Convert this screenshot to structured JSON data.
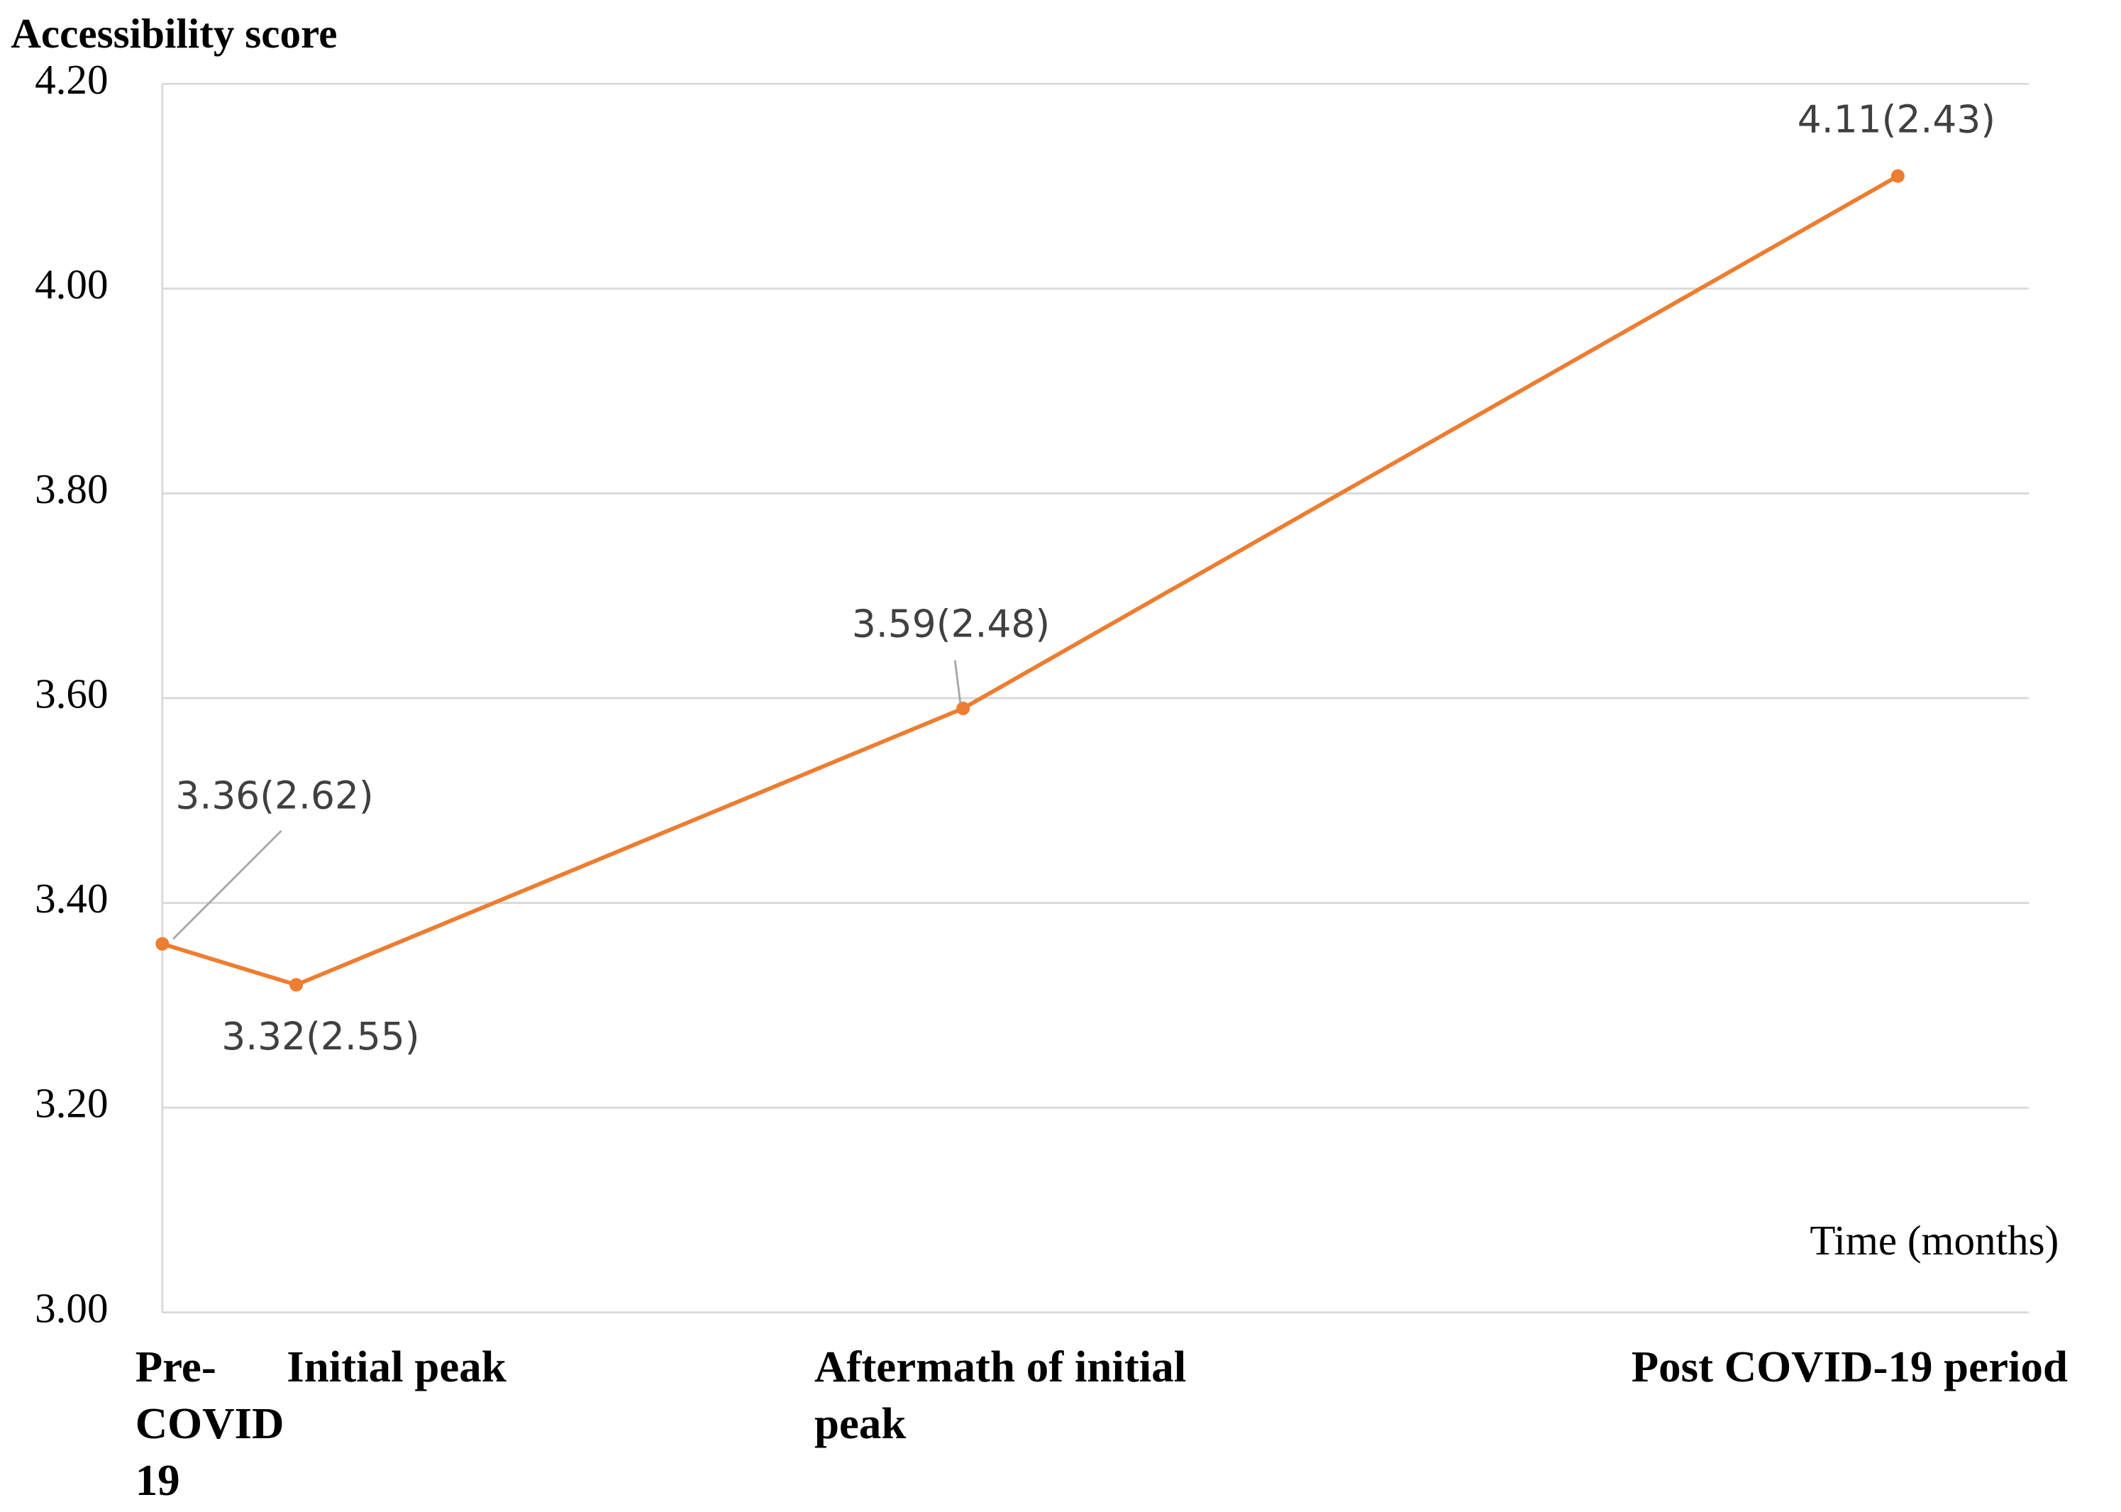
{
  "chart_data": {
    "type": "line",
    "y_label": "Accessibility score",
    "x_label": "Time (months)",
    "categories": [
      "Pre-COVID-19",
      "Initial peak",
      "Aftermath of initial peak",
      "Post COVID-19 period"
    ],
    "series": [
      {
        "name": "Accessibility score",
        "color": "#ed7d31",
        "values": [
          3.36,
          3.32,
          3.59,
          4.11
        ],
        "sd": [
          2.62,
          2.55,
          2.48,
          2.43
        ],
        "value_labels": [
          "3.36(2.62)",
          "3.32(2.55)",
          "3.59(2.48)",
          "4.11(2.43)"
        ]
      }
    ],
    "ylim": [
      3.0,
      4.2
    ],
    "yticks": [
      {
        "value": 3.0,
        "label": "3.00"
      },
      {
        "value": 3.2,
        "label": "3.20"
      },
      {
        "value": 3.4,
        "label": "3.40"
      },
      {
        "value": 3.6,
        "label": "3.60"
      },
      {
        "value": 3.8,
        "label": "3.80"
      },
      {
        "value": 4.0,
        "label": "4.00"
      },
      {
        "value": 4.2,
        "label": "4.20"
      }
    ],
    "grid": true
  }
}
